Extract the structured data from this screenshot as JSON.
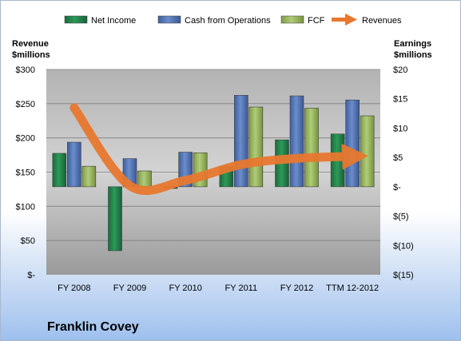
{
  "chart_data": {
    "type": "bar",
    "categories": [
      "FY 2008",
      "FY 2009",
      "FY 2010",
      "FY 2011",
      "FY 2012",
      "TTM 12-2012"
    ],
    "series": [
      {
        "name": "Net Income",
        "axis": "right",
        "color": "#1e7a43",
        "values": [
          5.7,
          -10.9,
          -0.3,
          3.5,
          8.0,
          9.0
        ]
      },
      {
        "name": "Cash from Operations",
        "axis": "right",
        "color": "#4f72b3",
        "values": [
          7.6,
          4.8,
          5.9,
          15.6,
          15.5,
          14.8
        ]
      },
      {
        "name": "FCF",
        "axis": "right",
        "color": "#97b55d",
        "values": [
          3.5,
          2.7,
          5.8,
          13.6,
          13.4,
          12.1
        ]
      },
      {
        "name": "Revenues",
        "axis": "left",
        "type": "line",
        "color": "#e8782f",
        "values": [
          244,
          130,
          138,
          161,
          170,
          173
        ]
      }
    ],
    "left_axis": {
      "title_lines": [
        "Revenue",
        "$millions"
      ],
      "ylim": [
        0,
        300
      ],
      "ticks": [
        300,
        250,
        200,
        150,
        100,
        50,
        0
      ],
      "tick_labels": [
        "$300",
        "$250",
        "$200",
        "$150",
        "$100",
        "$50",
        "$-"
      ]
    },
    "right_axis": {
      "title_lines": [
        "Earnings",
        "$millions"
      ],
      "ylim": [
        -15,
        20
      ],
      "ticks": [
        20,
        15,
        10,
        5,
        0,
        -5,
        -10,
        -15
      ],
      "tick_labels": [
        "$20",
        "$15",
        "$10",
        "$5",
        "$-",
        "$(5)",
        "$(10)",
        "$(15)"
      ]
    },
    "grid": true,
    "legend_position": "top",
    "title": "Franklin Covey"
  }
}
